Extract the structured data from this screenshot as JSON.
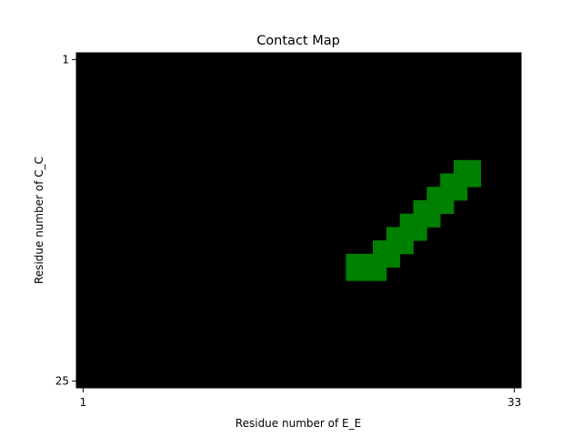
{
  "chart_data": {
    "type": "heatmap",
    "title": "Contact Map",
    "xlabel": "Residue number of E_E",
    "ylabel": "Residue number of C_C",
    "xlim": [
      1,
      33
    ],
    "ylim": [
      1,
      25
    ],
    "x_ticks": [
      "1",
      "33"
    ],
    "y_ticks": [
      "1",
      "25"
    ],
    "background_color": "#000000",
    "contact_color": "#008000",
    "grid": false,
    "contacts": [
      {
        "x": 29,
        "y": 9
      },
      {
        "x": 30,
        "y": 9
      },
      {
        "x": 28,
        "y": 10
      },
      {
        "x": 29,
        "y": 10
      },
      {
        "x": 30,
        "y": 10
      },
      {
        "x": 27,
        "y": 11
      },
      {
        "x": 28,
        "y": 11
      },
      {
        "x": 29,
        "y": 11
      },
      {
        "x": 26,
        "y": 12
      },
      {
        "x": 27,
        "y": 12
      },
      {
        "x": 28,
        "y": 12
      },
      {
        "x": 25,
        "y": 13
      },
      {
        "x": 26,
        "y": 13
      },
      {
        "x": 27,
        "y": 13
      },
      {
        "x": 24,
        "y": 14
      },
      {
        "x": 25,
        "y": 14
      },
      {
        "x": 26,
        "y": 14
      },
      {
        "x": 23,
        "y": 15
      },
      {
        "x": 24,
        "y": 15
      },
      {
        "x": 25,
        "y": 15
      },
      {
        "x": 21,
        "y": 16
      },
      {
        "x": 22,
        "y": 16
      },
      {
        "x": 23,
        "y": 16
      },
      {
        "x": 24,
        "y": 16
      },
      {
        "x": 21,
        "y": 17
      },
      {
        "x": 22,
        "y": 17
      },
      {
        "x": 23,
        "y": 17
      }
    ]
  }
}
